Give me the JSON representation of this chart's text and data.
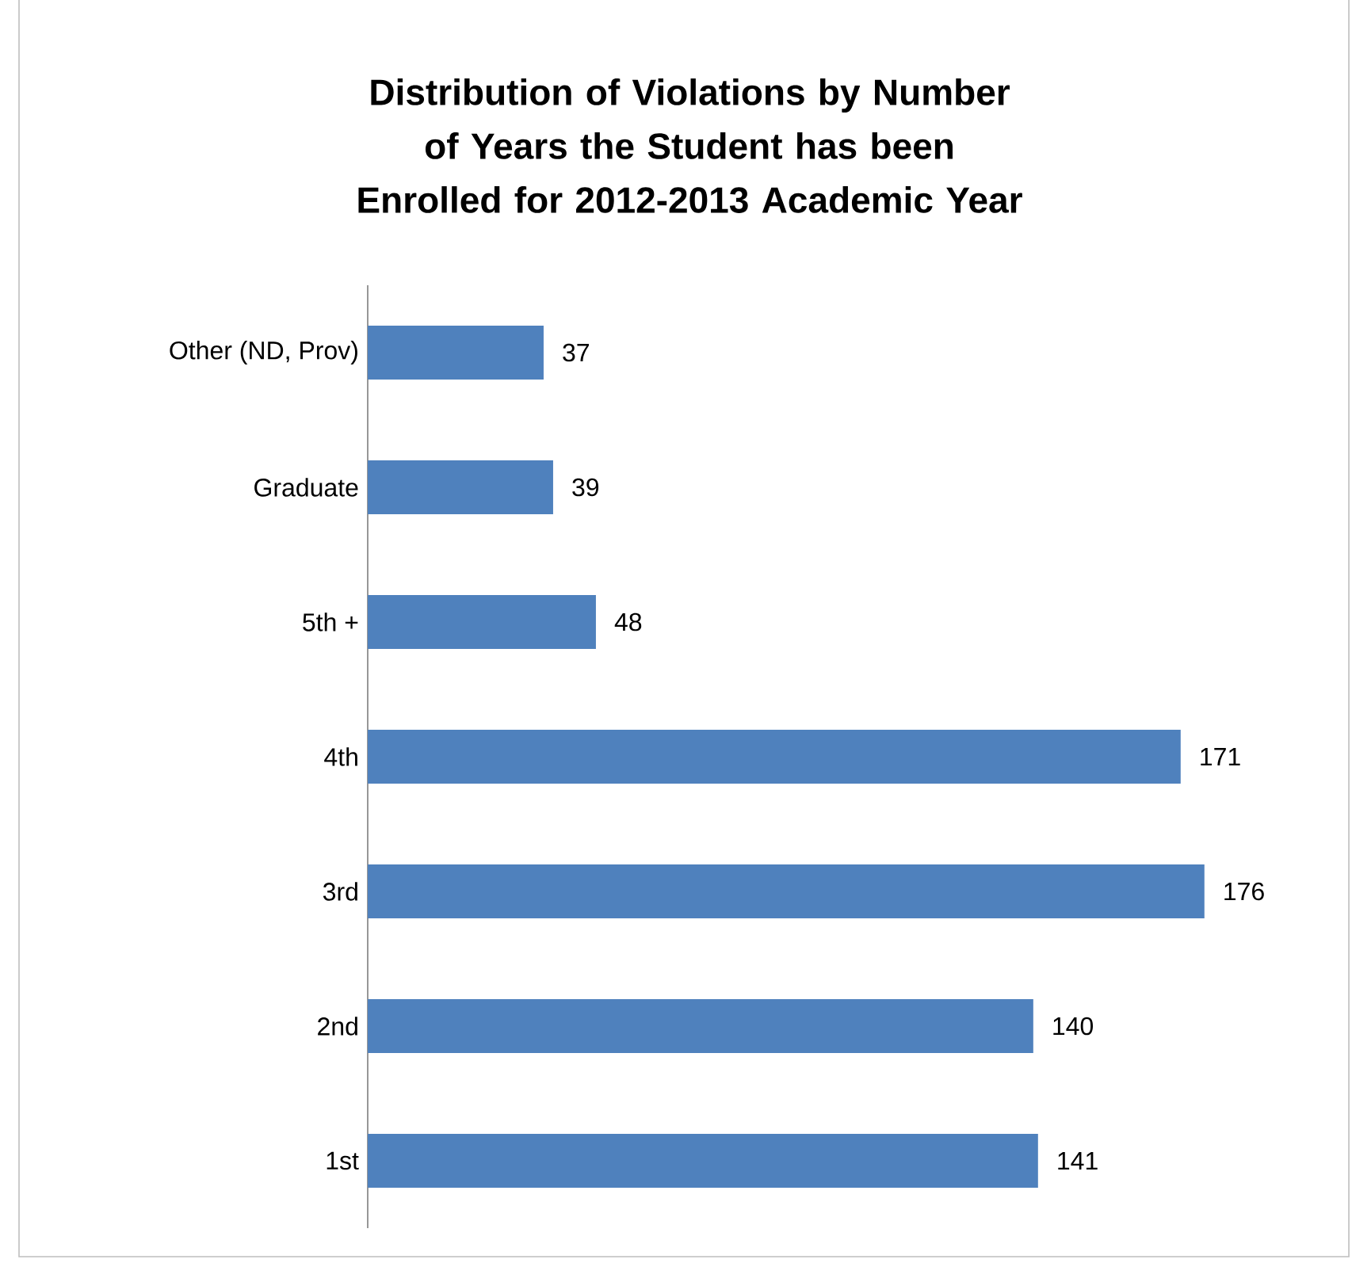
{
  "chart_data": {
    "type": "bar",
    "orientation": "horizontal",
    "title": "Distribution of Violations by Number of Years the Student has been Enrolled for 2012-2013 Academic Year",
    "categories": [
      "Other (ND, Prov)",
      "Graduate",
      "5th +",
      "4th",
      "3rd",
      "2nd",
      "1st"
    ],
    "values": [
      37,
      39,
      48,
      171,
      176,
      140,
      141
    ],
    "color": "#4f81bd",
    "data_labels": true
  }
}
